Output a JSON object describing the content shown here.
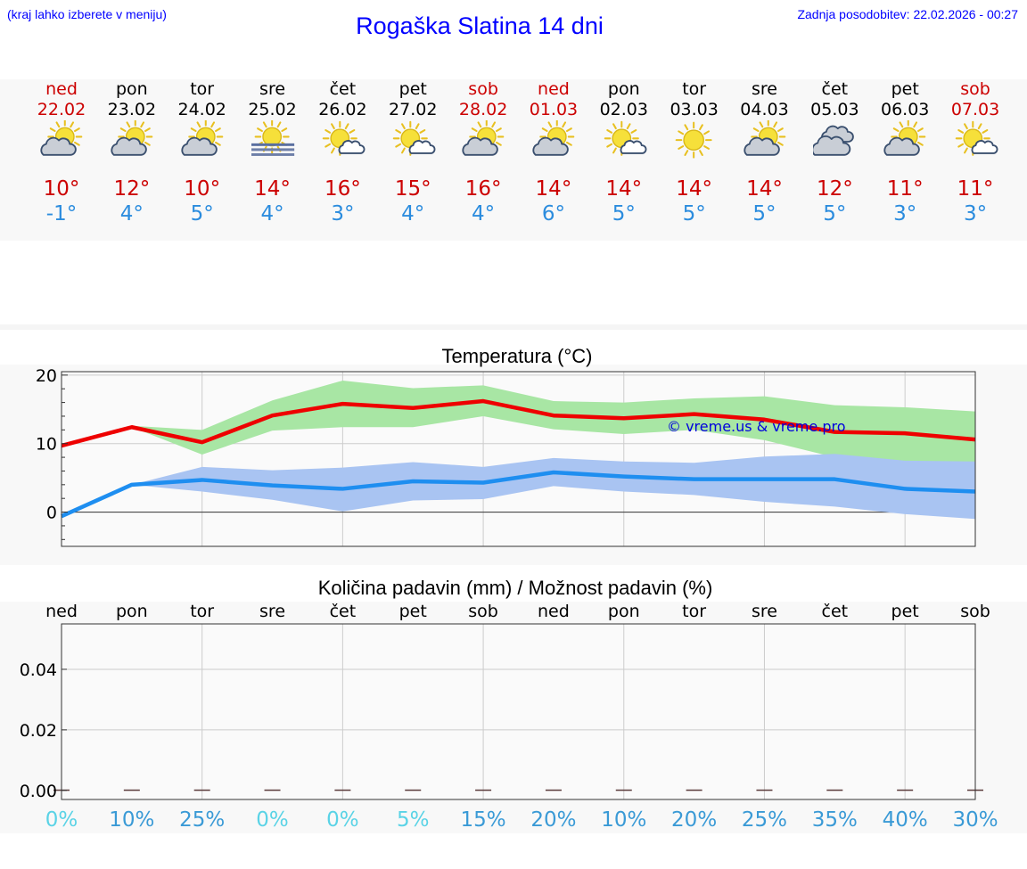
{
  "header": {
    "note": "(kraj lahko izberete v meniju)",
    "title": "Rogaška Slatina 14 dni",
    "updated": "Zadnja posodobitev: 22.02.2026 - 00:27"
  },
  "forecast": [
    {
      "day": "ned",
      "date": "22.02",
      "weekend": true,
      "icon": "sun-cloud-icon",
      "max": "10°",
      "min": "-1°"
    },
    {
      "day": "pon",
      "date": "23.02",
      "weekend": false,
      "icon": "sun-cloud-icon",
      "max": "12°",
      "min": "4°"
    },
    {
      "day": "tor",
      "date": "24.02",
      "weekend": false,
      "icon": "sun-cloud-icon",
      "max": "10°",
      "min": "5°"
    },
    {
      "day": "sre",
      "date": "25.02",
      "weekend": false,
      "icon": "sun-fog-icon",
      "max": "14°",
      "min": "4°"
    },
    {
      "day": "čet",
      "date": "26.02",
      "weekend": false,
      "icon": "sun-small-cloud-icon",
      "max": "16°",
      "min": "3°"
    },
    {
      "day": "pet",
      "date": "27.02",
      "weekend": false,
      "icon": "sun-small-cloud-icon",
      "max": "15°",
      "min": "4°"
    },
    {
      "day": "sob",
      "date": "28.02",
      "weekend": true,
      "icon": "sun-cloud-icon",
      "max": "16°",
      "min": "4°"
    },
    {
      "day": "ned",
      "date": "01.03",
      "weekend": true,
      "icon": "sun-cloud-icon",
      "max": "14°",
      "min": "6°"
    },
    {
      "day": "pon",
      "date": "02.03",
      "weekend": false,
      "icon": "sun-small-cloud-icon",
      "max": "14°",
      "min": "5°"
    },
    {
      "day": "tor",
      "date": "03.03",
      "weekend": false,
      "icon": "sun-icon",
      "max": "14°",
      "min": "5°"
    },
    {
      "day": "sre",
      "date": "04.03",
      "weekend": false,
      "icon": "sun-cloud-icon",
      "max": "14°",
      "min": "5°"
    },
    {
      "day": "čet",
      "date": "05.03",
      "weekend": false,
      "icon": "cloudy-icon",
      "max": "12°",
      "min": "5°"
    },
    {
      "day": "pet",
      "date": "06.03",
      "weekend": false,
      "icon": "sun-cloud-icon",
      "max": "11°",
      "min": "3°"
    },
    {
      "day": "sob",
      "date": "07.03",
      "weekend": true,
      "icon": "sun-small-cloud-icon",
      "max": "11°",
      "min": "3°"
    }
  ],
  "colors": {
    "max": "#ee0000",
    "min": "#1e8ef0",
    "max_band": "#a8e6a4",
    "min_band": "#a9c4f2"
  },
  "chart_data": [
    {
      "type": "line",
      "title": "Temperatura (°C)",
      "xlabel": "",
      "ylabel": "",
      "ylim": [
        -5,
        20.5
      ],
      "yticks": [
        "0",
        "10",
        "20"
      ],
      "watermark": "© vreme.us & vreme.pro",
      "x": [
        0,
        1,
        2,
        3,
        4,
        5,
        6,
        7,
        8,
        9,
        10,
        11,
        12,
        13
      ],
      "series": [
        {
          "name": "max",
          "values": [
            9.7,
            12.4,
            10.2,
            14.1,
            15.8,
            15.2,
            16.2,
            14.1,
            13.7,
            14.3,
            13.5,
            11.7,
            11.5,
            10.6
          ]
        },
        {
          "name": "max_range",
          "lower": [
            9.7,
            12.4,
            8.4,
            11.9,
            12.4,
            12.4,
            14.0,
            12.1,
            11.4,
            12.0,
            10.5,
            8.0,
            7.3,
            6.9
          ],
          "upper": [
            9.7,
            12.6,
            12.0,
            16.3,
            19.2,
            18.1,
            18.5,
            16.2,
            16.0,
            16.6,
            16.9,
            15.6,
            15.3,
            14.7
          ]
        },
        {
          "name": "min",
          "values": [
            -0.6,
            4.0,
            4.7,
            3.9,
            3.4,
            4.5,
            4.3,
            5.8,
            5.2,
            4.8,
            4.8,
            4.8,
            3.4,
            3.0
          ]
        },
        {
          "name": "min_range",
          "lower": [
            -0.6,
            4.0,
            3.0,
            1.8,
            0.1,
            1.7,
            1.9,
            3.8,
            3.0,
            2.5,
            1.5,
            0.8,
            -0.3,
            -1.0
          ],
          "upper": [
            -0.6,
            4.0,
            6.6,
            6.1,
            6.5,
            7.3,
            6.6,
            7.9,
            7.4,
            7.2,
            8.1,
            8.5,
            7.5,
            7.4
          ]
        }
      ]
    },
    {
      "type": "bar",
      "title": "Količina padavin (mm) / Možnost padavin (%)",
      "categories": [
        "ned",
        "pon",
        "tor",
        "sre",
        "čet",
        "pet",
        "sob",
        "ned",
        "pon",
        "tor",
        "sre",
        "čet",
        "pet",
        "sob"
      ],
      "values": [
        0,
        0,
        0,
        0,
        0,
        0,
        0,
        0,
        0,
        0,
        0,
        0,
        0,
        0
      ],
      "probability": [
        "0%",
        "10%",
        "25%",
        "0%",
        "0%",
        "5%",
        "15%",
        "20%",
        "10%",
        "20%",
        "25%",
        "35%",
        "40%",
        "30%"
      ],
      "ylim": [
        -0.003,
        0.055
      ],
      "yticks": [
        "0.00",
        "0.02",
        "0.04"
      ]
    }
  ]
}
